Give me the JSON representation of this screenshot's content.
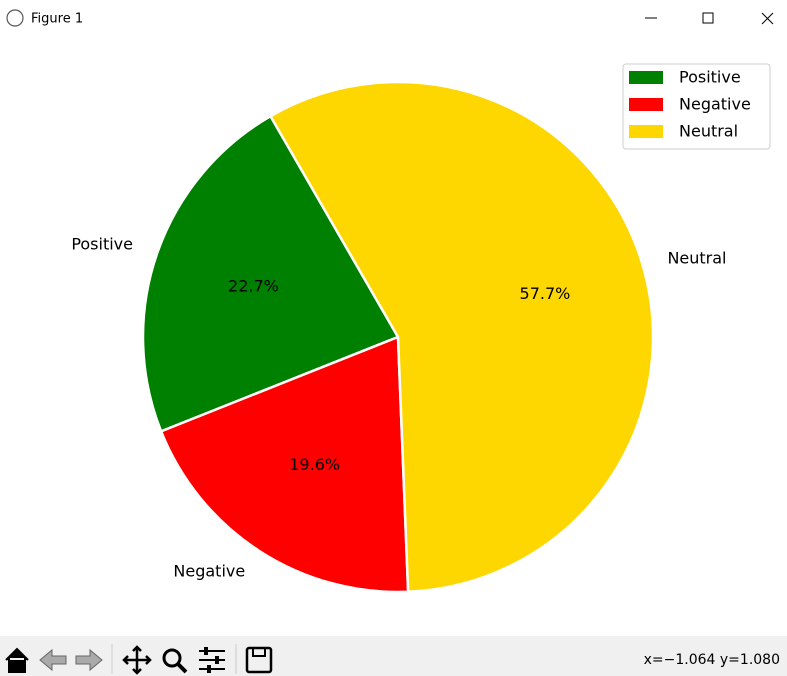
{
  "window": {
    "title": "Figure 1",
    "status": "x=−1.064 y=1.080"
  },
  "chart_data": {
    "type": "pie",
    "categories": [
      "Positive",
      "Negative",
      "Neutral"
    ],
    "values": [
      22.7,
      19.6,
      57.7
    ],
    "value_labels": [
      "22.7%",
      "19.6%",
      "57.7%"
    ],
    "colors": [
      "#008000",
      "#ff0000",
      "#ffd700"
    ],
    "start_angle": 120,
    "legend": "upper right"
  }
}
